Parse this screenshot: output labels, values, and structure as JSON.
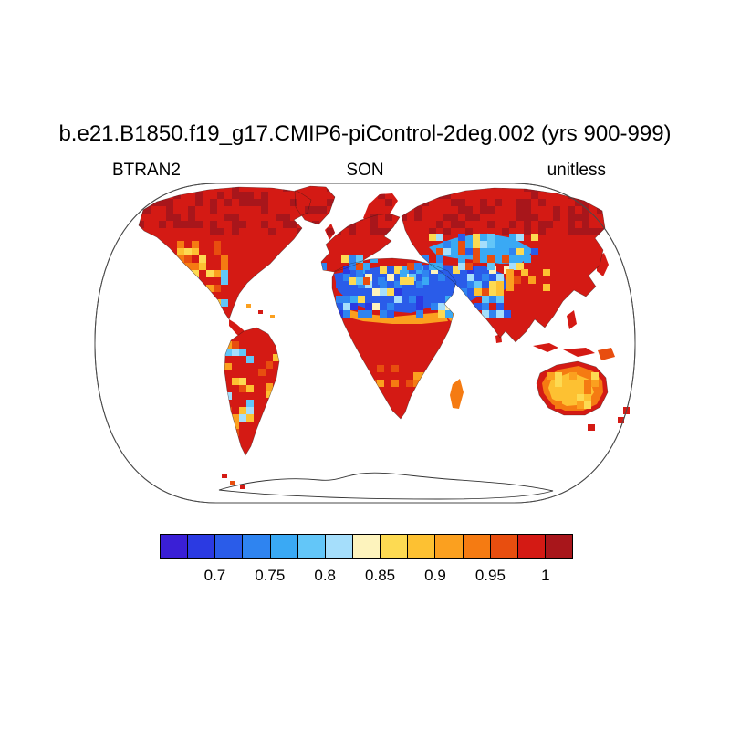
{
  "title": "b.e21.B1850.f19_g17.CMIP6-piControl-2deg.002 (yrs 900-999)",
  "labels": {
    "variable": "BTRAN2",
    "season": "SON",
    "units": "unitless"
  },
  "chart_data": {
    "type": "heatmap",
    "subtype": "global-map",
    "projection": "Robinson",
    "title": "b.e21.B1850.f19_g17.CMIP6-piControl-2deg.002 (yrs 900-999)",
    "variable": "BTRAN2",
    "season": "SON",
    "units": "unitless",
    "value_range": [
      0.65,
      1.025
    ],
    "colorbar": {
      "orientation": "horizontal",
      "tick_labels": [
        "0.7",
        "0.75",
        "0.8",
        "0.85",
        "0.9",
        "0.95",
        "1"
      ],
      "tick_values": [
        0.7,
        0.75,
        0.8,
        0.85,
        0.9,
        0.95,
        1
      ],
      "bin_width": 0.025,
      "colors": [
        "#3a1fd6",
        "#2b3ae2",
        "#2a5ce9",
        "#2f84f0",
        "#3aa9f4",
        "#63c6f8",
        "#a5defb",
        "#fdf3bd",
        "#fdda52",
        "#fdc132",
        "#fba01f",
        "#f57b12",
        "#e84e0f",
        "#d41a14",
        "#a8161b"
      ]
    },
    "region_values": [
      {
        "region": "Boreal North America, Greenland",
        "value": "0.975-1.0"
      },
      {
        "region": "Western United States / Mexico",
        "value": "0.85-0.95"
      },
      {
        "region": "Eastern North America",
        "value": "0.95-1.0"
      },
      {
        "region": "Amazon basin",
        "value": "0.95-1.0"
      },
      {
        "region": "Andes / Pacific coast of South America",
        "value": "0.75-0.9"
      },
      {
        "region": "Eastern Brazil",
        "value": "0.875-0.95"
      },
      {
        "region": "Europe",
        "value": "0.9-1.0"
      },
      {
        "region": "Mediterranean / Turkey",
        "value": "0.75-0.875"
      },
      {
        "region": "Sahara and Arabian Peninsula",
        "value": "0.675-0.775"
      },
      {
        "region": "Sahel / Horn of Africa",
        "value": "0.8-0.9"
      },
      {
        "region": "Central and southern Africa",
        "value": "0.875-1.0"
      },
      {
        "region": "Central Asia / Middle East",
        "value": "0.7-0.85"
      },
      {
        "region": "Siberia and East Asia",
        "value": "0.975-1.0"
      },
      {
        "region": "Northwest India / Pakistan",
        "value": "0.8-0.9"
      },
      {
        "region": "India / Southeast Asia",
        "value": "0.95-1.0"
      },
      {
        "region": "Australian interior",
        "value": "0.85-0.95"
      },
      {
        "region": "Australian coasts",
        "value": "0.95-1.0"
      },
      {
        "region": "Antarctica",
        "value": "no data"
      }
    ]
  }
}
